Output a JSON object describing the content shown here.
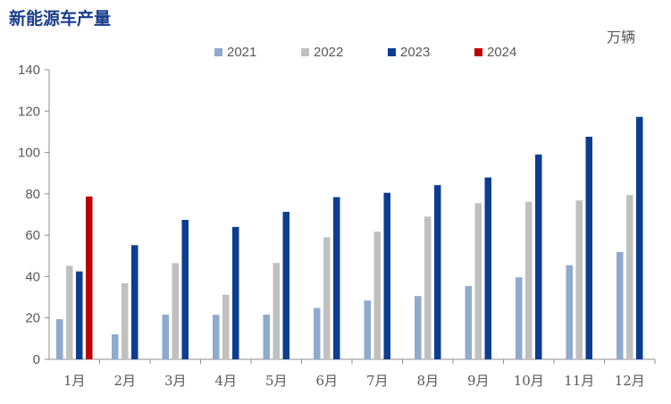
{
  "header": {
    "title": "新能源车产量",
    "unit": "万辆"
  },
  "chart_data": {
    "type": "bar",
    "title": "新能源车产量",
    "unit": "万辆",
    "categories": [
      "1月",
      "2月",
      "3月",
      "4月",
      "5月",
      "6月",
      "7月",
      "8月",
      "9月",
      "10月",
      "11月",
      "12月"
    ],
    "series": [
      {
        "name": "2021",
        "color": "#8eaacd",
        "values": [
          19.4,
          12.1,
          21.6,
          21.5,
          21.6,
          24.8,
          28.4,
          30.6,
          35.4,
          39.7,
          45.5,
          51.9
        ]
      },
      {
        "name": "2022",
        "color": "#c0c0c0",
        "values": [
          45.2,
          36.8,
          46.5,
          31.2,
          46.6,
          59.0,
          61.7,
          69.0,
          75.5,
          76.2,
          76.8,
          79.4
        ]
      },
      {
        "name": "2023",
        "color": "#0b3d91",
        "values": [
          42.5,
          55.2,
          67.4,
          64.0,
          71.3,
          78.4,
          80.5,
          84.2,
          87.9,
          99.0,
          107.6,
          117.2
        ]
      },
      {
        "name": "2024",
        "color": "#c00000",
        "values": [
          78.7,
          null,
          null,
          null,
          null,
          null,
          null,
          null,
          null,
          null,
          null,
          null
        ]
      }
    ],
    "ylim": [
      0,
      140
    ],
    "yticks": [
      0,
      20,
      40,
      60,
      80,
      100,
      120,
      140
    ],
    "legend_position": "top-center",
    "grid": false
  }
}
